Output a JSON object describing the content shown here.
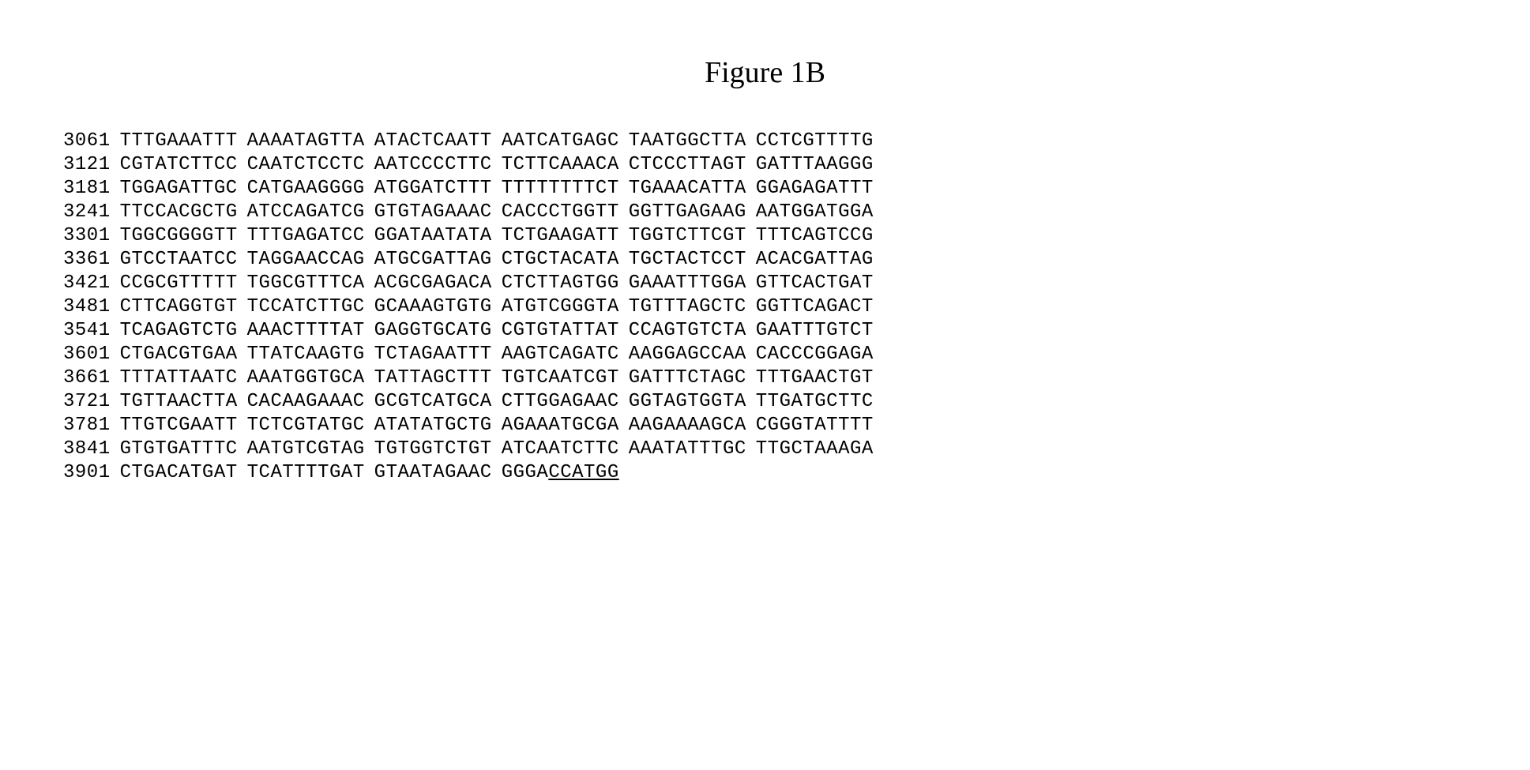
{
  "title": "Figure 1B",
  "font": {
    "title_family": "Times New Roman, serif",
    "title_size_pt": 28,
    "sequence_family": "Courier New, monospace",
    "sequence_size_pt": 18,
    "color": "#000000",
    "background_color": "#ffffff"
  },
  "sequence": {
    "type": "nucleotide-sequence-listing",
    "block_width": 10,
    "blocks_per_row": 6,
    "rows": [
      {
        "position": "3061",
        "blocks": [
          "TTTGAAATTT",
          "AAAATAGTTA",
          "ATACTCAATT",
          "AATCATGAGC",
          "TAATGGCTTA",
          "CCTCGTTTTG"
        ]
      },
      {
        "position": "3121",
        "blocks": [
          "CGTATCTTCC",
          "CAATCTCCTC",
          "AATCCCCTTC",
          "TCTTCAAACA",
          "CTCCCTTAGT",
          "GATTTAAGGG"
        ]
      },
      {
        "position": "3181",
        "blocks": [
          "TGGAGATTGC",
          "CATGAAGGGG",
          "ATGGATCTTT",
          "TTTTTTTTCT",
          "TGAAACATTA",
          "GGAGAGATTT"
        ]
      },
      {
        "position": "3241",
        "blocks": [
          "TTCCACGCTG",
          "ATCCAGATCG",
          "GTGTAGAAAC",
          "CACCCTGGTT",
          "GGTTGAGAAG",
          "AATGGATGGA"
        ]
      },
      {
        "position": "3301",
        "blocks": [
          "TGGCGGGGTT",
          "TTTGAGATCC",
          "GGATAATATA",
          "TCTGAAGATT",
          "TGGTCTTCGT",
          "TTTCAGTCCG"
        ]
      },
      {
        "position": "3361",
        "blocks": [
          "GTCCTAATCC",
          "TAGGAACCAG",
          "ATGCGATTAG",
          "CTGCTACATA",
          "TGCTACTCCT",
          "ACACGATTAG"
        ]
      },
      {
        "position": "3421",
        "blocks": [
          "CCGCGTTTTT",
          "TGGCGTTTCA",
          "ACGCGAGACA",
          "CTCTTAGTGG",
          "GAAATTTGGA",
          "GTTCACTGAT"
        ]
      },
      {
        "position": "3481",
        "blocks": [
          "CTTCAGGTGT",
          "TCCATCTTGC",
          "GCAAAGTGTG",
          "ATGTCGGGTA",
          "TGTTTAGCTC",
          "GGTTCAGACT"
        ]
      },
      {
        "position": "3541",
        "blocks": [
          "TCAGAGTCTG",
          "AAACTTTTAT",
          "GAGGTGCATG",
          "CGTGTATTAT",
          "CCAGTGTCTA",
          "GAATTTGTCT"
        ]
      },
      {
        "position": "3601",
        "blocks": [
          "CTGACGTGAA",
          "TTATCAAGTG",
          "TCTAGAATTT",
          "AAGTCAGATC",
          "AAGGAGCCAA",
          "CACCCGGAGA"
        ]
      },
      {
        "position": "3661",
        "blocks": [
          "TTTATTAATC",
          "AAATGGTGCA",
          "TATTAGCTTT",
          "TGTCAATCGT",
          "GATTTCTAGC",
          "TTTGAACTGT"
        ]
      },
      {
        "position": "3721",
        "blocks": [
          "TGTTAACTTA",
          "CACAAGAAAC",
          "GCGTCATGCA",
          "CTTGGAGAAC",
          "GGTAGTGGTA",
          "TTGATGCTTC"
        ]
      },
      {
        "position": "3781",
        "blocks": [
          "TTGTCGAATT",
          "TCTCGTATGC",
          "ATATATGCTG",
          "AGAAATGCGA",
          "AAGAAAAGCA",
          "CGGGTATTTT"
        ]
      },
      {
        "position": "3841",
        "blocks": [
          "GTGTGATTTC",
          "AATGTCGTAG",
          "TGTGGTCTGT",
          "ATCAATCTTC",
          "AAATATTTGC",
          "TTGCTAAAGA"
        ]
      },
      {
        "position": "3901",
        "blocks": [
          "CTGACATGAT",
          "TCATTTTGAT",
          "GTAATAGAAC",
          "GGGACCATGG",
          "",
          ""
        ],
        "underline": {
          "block_index": 3,
          "start": 4,
          "end": 10
        }
      }
    ]
  }
}
